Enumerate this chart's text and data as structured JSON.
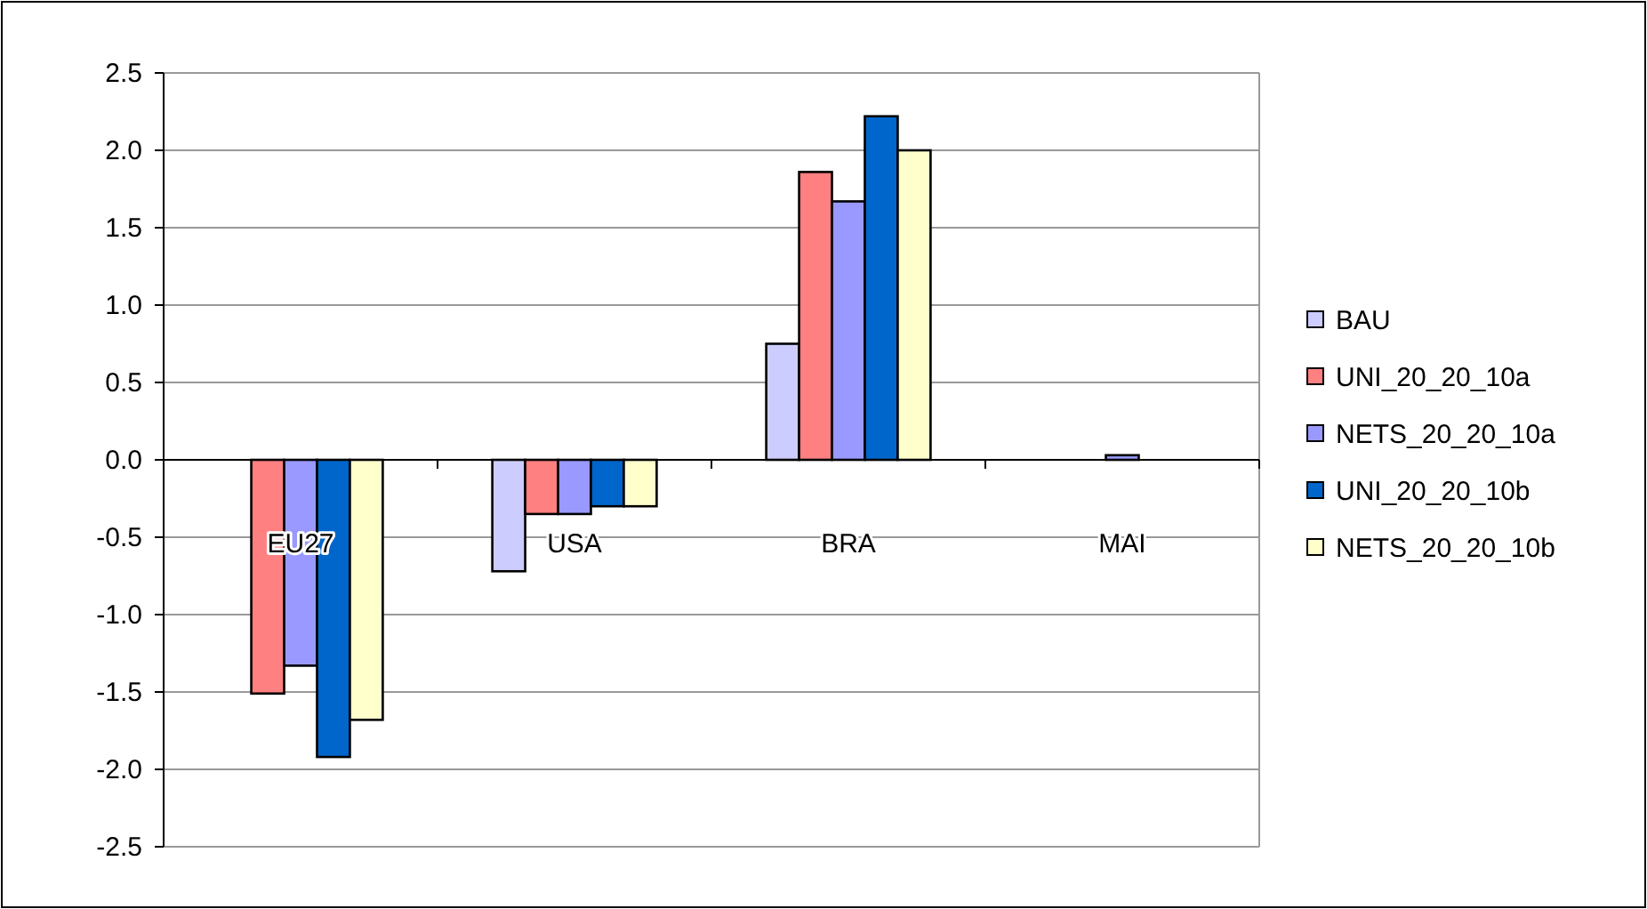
{
  "chart_data": {
    "type": "bar",
    "categories": [
      "EU27",
      "USA",
      "BRA",
      "MAI"
    ],
    "series": [
      {
        "name": "BAU",
        "color": "#ccccff",
        "values": [
          0,
          -0.72,
          0.75,
          null
        ]
      },
      {
        "name": "UNI_20_20_10a",
        "color": "#ff8080",
        "values": [
          -1.51,
          -0.35,
          1.86,
          null
        ]
      },
      {
        "name": "NETS_20_20_10a",
        "color": "#9999ff",
        "values": [
          -1.33,
          -0.35,
          1.67,
          0.03
        ]
      },
      {
        "name": "UNI_20_20_10b",
        "color": "#0066cc",
        "values": [
          -1.92,
          -0.3,
          2.22,
          null
        ]
      },
      {
        "name": "NETS_20_20_10b",
        "color": "#ffffcc",
        "values": [
          -1.68,
          -0.3,
          2.0,
          null
        ]
      }
    ],
    "ylim": [
      -2.5,
      2.5
    ],
    "yticks": [
      {
        "value": 2.5,
        "label": "2.5"
      },
      {
        "value": 2,
        "label": "2.0"
      },
      {
        "value": 1.5,
        "label": "1.5"
      },
      {
        "value": 1,
        "label": "1.0"
      },
      {
        "value": 0.5,
        "label": "0.5"
      },
      {
        "value": 0,
        "label": "0.0"
      },
      {
        "value": -0.5,
        "label": "-0.5"
      },
      {
        "value": -1,
        "label": "-1.0"
      },
      {
        "value": -1.5,
        "label": "-1.5"
      },
      {
        "value": -2,
        "label": "-2.0"
      },
      {
        "value": -2.5,
        "label": "-2.5"
      }
    ],
    "grid": "y",
    "legend": "right"
  }
}
